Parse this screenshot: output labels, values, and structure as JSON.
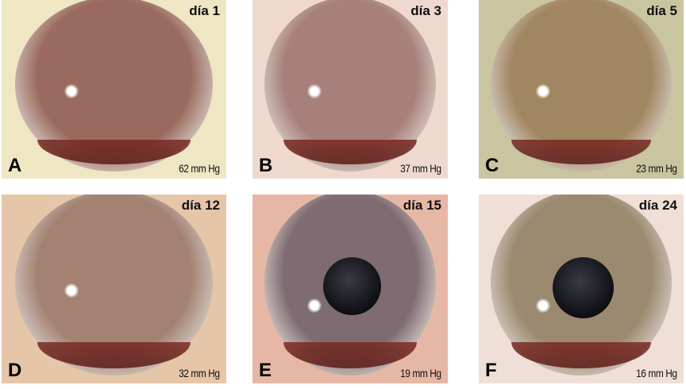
{
  "panels": [
    {
      "letter": "A",
      "day": "día 1",
      "iop": "62 mm Hg",
      "bg": "#efe6c4",
      "cornea": "#9a6a5e",
      "pupil": false
    },
    {
      "letter": "B",
      "day": "día 3",
      "iop": "37 mm Hg",
      "bg": "#efd9cf",
      "cornea": "#a8807a",
      "pupil": false
    },
    {
      "letter": "C",
      "day": "día 5",
      "iop": "23 mm Hg",
      "bg": "#c9c5a0",
      "cornea": "#a18761",
      "pupil": false
    },
    {
      "letter": "D",
      "day": "día 12",
      "iop": "32 mm Hg",
      "bg": "#e6c6a8",
      "cornea": "#a38272",
      "pupil": false
    },
    {
      "letter": "E",
      "day": "día 15",
      "iop": "19 mm Hg",
      "bg": "#e7b7a6",
      "cornea": "#7f6c73",
      "pupil": true
    },
    {
      "letter": "F",
      "day": "día 24",
      "iop": "16 mm Hg",
      "bg": "#f0dfd6",
      "cornea": "#9b8a70",
      "pupil": true
    }
  ]
}
